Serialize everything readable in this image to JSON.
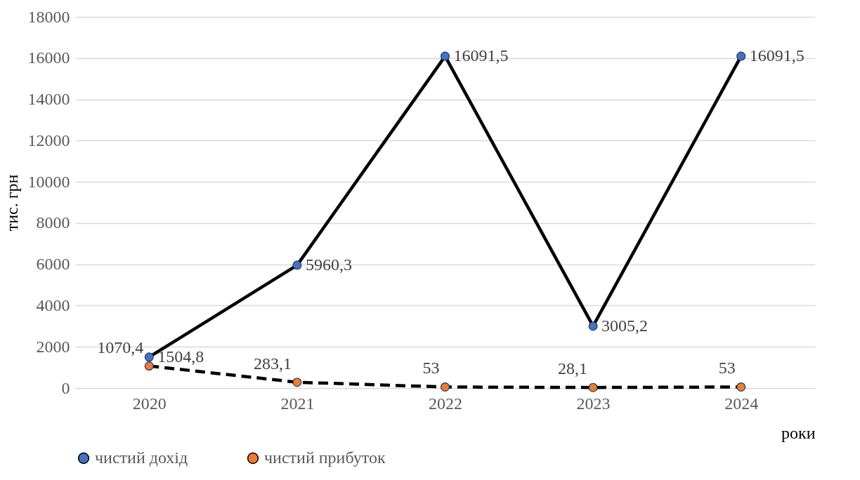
{
  "chart_data": {
    "type": "line",
    "ylabel": "тис. грн",
    "xlabel": "роки",
    "categories": [
      "2020",
      "2021",
      "2022",
      "2023",
      "2024"
    ],
    "series": [
      {
        "name": "чистий дохід",
        "color": "#4472c4",
        "line_style": "solid",
        "values": [
          1504.8,
          5960.3,
          16091.5,
          3005.2,
          16091.5
        ],
        "value_labels": [
          "1504,8",
          "5960,3",
          "16091,5",
          "3005,2",
          "16091,5"
        ]
      },
      {
        "name": "чистий прибуток",
        "color": "#ed7d31",
        "line_style": "dashed",
        "values": [
          1070.4,
          283.1,
          53,
          28.1,
          53
        ],
        "value_labels": [
          "1070,4",
          "283,1",
          "53",
          "28,1",
          "53"
        ]
      }
    ],
    "ylim": [
      0,
      18000
    ],
    "yticks": [
      0,
      2000,
      4000,
      6000,
      8000,
      10000,
      12000,
      14000,
      16000,
      18000
    ],
    "grid": "y",
    "legend": "bottom",
    "marker": "circle"
  }
}
